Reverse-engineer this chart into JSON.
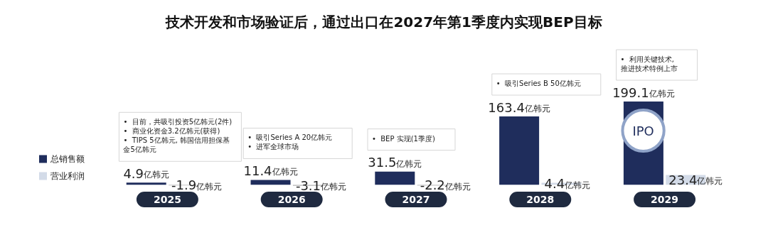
{
  "chart_data": {
    "type": "bar",
    "title": "技术开发和市场验证后，通过出口在2027年第1季度内实现BEP目标",
    "categories": [
      "2025",
      "2026",
      "2027",
      "2028",
      "2029"
    ],
    "series": [
      {
        "name": "总销售额",
        "color": "#1f2d5c",
        "values": [
          4.9,
          11.4,
          31.5,
          163.4,
          199.1
        ],
        "value_labels": [
          "4.9亿韩元",
          "11.4亿韩元",
          "31.5亿韩元",
          "163.4亿韩元",
          "199.1亿韩元"
        ]
      },
      {
        "name": "营业利润",
        "color": "#d3dbe8",
        "colors": [
          "#c8c8c8",
          "#c8c8c8",
          "#c8c8c8",
          "#d3dbe8",
          "#d3dbe8"
        ],
        "values": [
          -1.9,
          -3.1,
          -2.2,
          4.4,
          23.4
        ],
        "value_labels": [
          "-1.9亿韩元",
          "-3.1亿韩元",
          "-2.2亿韩元",
          "4.4亿韩元",
          "23.4亿韩元"
        ]
      }
    ],
    "data_labels": true,
    "legend": "left",
    "grid": false,
    "annotations": [
      "•  目前，共吸引投资5亿韩元(2件)\n•  商业化资金3.2亿韩元(获得)\n•  TIPS 5亿韩元, 韩国信用担保基金5亿韩元",
      "•  吸引Series A 20亿韩元\n•  进军全球市场",
      "•  BEP 实现(1季度)",
      "•  吸引Series B 50亿韩元",
      "•  利用关键技术,\n推进技术特例上市",
      "IPO"
    ]
  }
}
